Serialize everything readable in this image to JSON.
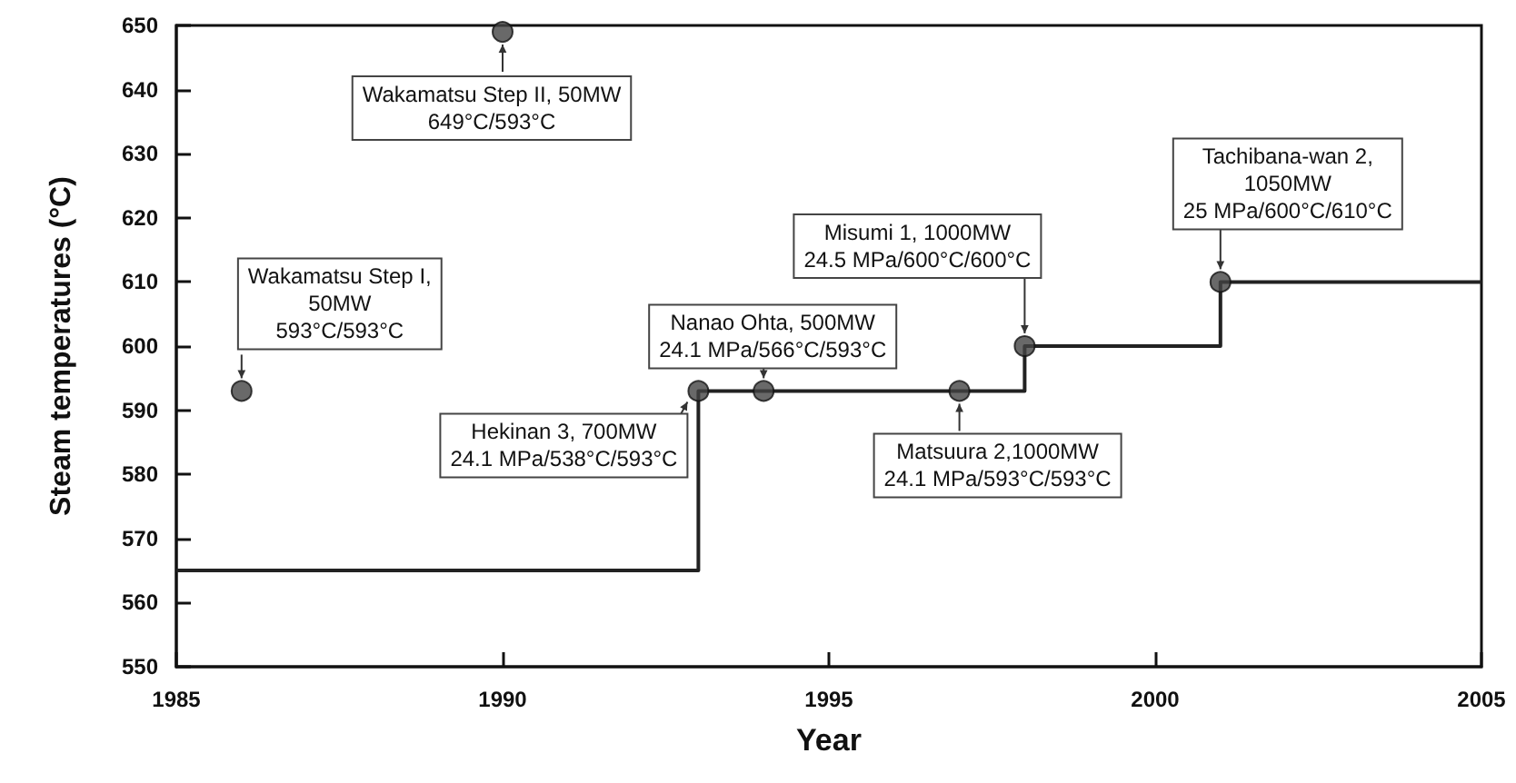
{
  "chart_data": {
    "type": "step",
    "xlabel": "Year",
    "ylabel": "Steam temperatures (°C)",
    "xlim": [
      1985,
      2005
    ],
    "xticks": [
      1985,
      1990,
      1995,
      2000,
      2005
    ],
    "ylim": [
      550,
      650
    ],
    "yticks": [
      550,
      560,
      570,
      580,
      590,
      600,
      610,
      620,
      630,
      640,
      650
    ],
    "grid": false,
    "series": [
      {
        "color": "#222222",
        "marker": "none",
        "x": [
          1985,
          1993,
          1998,
          2001,
          2005
        ],
        "values": [
          565,
          593,
          600,
          610,
          610
        ]
      },
      {
        "type": "scatter",
        "color": "#444444",
        "marker": "circle",
        "x": [
          1986,
          1990,
          1993,
          1994,
          1997,
          1998,
          2001
        ],
        "values": [
          593,
          649,
          593,
          593,
          593,
          600,
          610
        ]
      }
    ],
    "annotations": [
      {
        "text": "Wakamatsu Step I,\n50MW\n593°C/593°C",
        "x": 1986,
        "y": 593
      },
      {
        "text": "Wakamatsu Step II, 50MW\n649°C/593°C",
        "x": 1990,
        "y": 649
      },
      {
        "text": "Hekinan 3, 700MW\n24.1 MPa/538°C/593°C",
        "x": 1993,
        "y": 593
      },
      {
        "text": "Nanao Ohta, 500MW\n24.1 MPa/566°C/593°C",
        "x": 1994,
        "y": 593
      },
      {
        "text": "Matsuura 2,1000MW\n24.1 MPa/593°C/593°C",
        "x": 1997,
        "y": 593
      },
      {
        "text": "Misumi 1, 1000MW\n24.5 MPa/600°C/600°C",
        "x": 1998,
        "y": 600
      },
      {
        "text": "Tachibana-wan 2,\n1050MW\n25 MPa/600°C/610°C",
        "x": 2001,
        "y": 610
      }
    ]
  }
}
